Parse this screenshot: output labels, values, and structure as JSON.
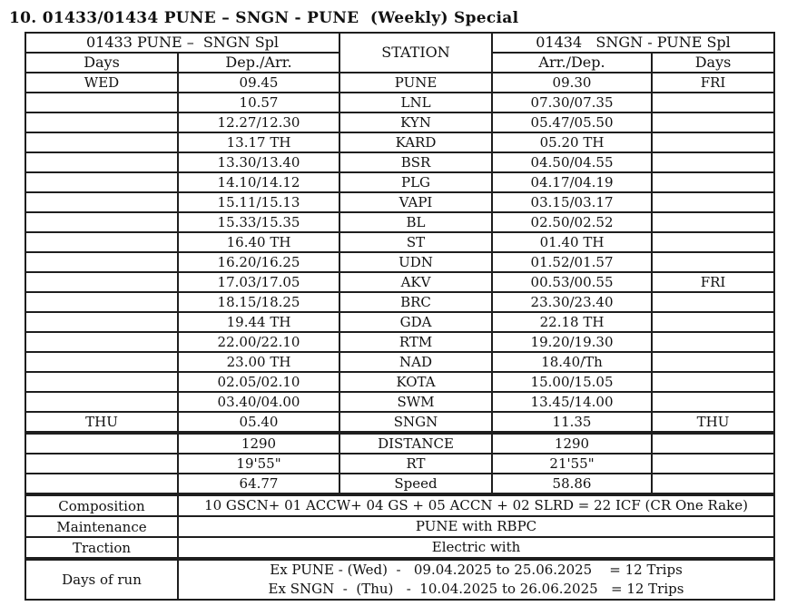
{
  "title": "10. 01433/01434 PUNE – SNGN - PUNE  (Weekly) Special",
  "table": {
    "left_group": "01433 PUNE –  SNGN Spl",
    "station_header": "STATION",
    "right_group": "01434   SNGN - PUNE Spl",
    "col_days_left": "Days",
    "col_dep": "Dep./Arr.",
    "col_arr": "Arr./Dep.",
    "col_days_right": "Days",
    "rows": [
      {
        "days_out": "WED",
        "dep_arr": "09.45",
        "station": "PUNE",
        "arr_dep": "09.30",
        "days_ret": "FRI",
        "thick_top": false
      },
      {
        "days_out": "",
        "dep_arr": "10.57",
        "station": "LNL",
        "arr_dep": "07.30/07.35",
        "days_ret": "",
        "thick_top": false
      },
      {
        "days_out": "",
        "dep_arr": "12.27/12.30",
        "station": "KYN",
        "arr_dep": "05.47/05.50",
        "days_ret": "",
        "thick_top": false
      },
      {
        "days_out": "",
        "dep_arr": "13.17 TH",
        "station": "KARD",
        "arr_dep": "05.20 TH",
        "days_ret": "",
        "thick_top": false
      },
      {
        "days_out": "",
        "dep_arr": "13.30/13.40",
        "station": "BSR",
        "arr_dep": "04.50/04.55",
        "days_ret": "",
        "thick_top": false
      },
      {
        "days_out": "",
        "dep_arr": "14.10/14.12",
        "station": "PLG",
        "arr_dep": "04.17/04.19",
        "days_ret": "",
        "thick_top": false
      },
      {
        "days_out": "",
        "dep_arr": "15.11/15.13",
        "station": "VAPI",
        "arr_dep": "03.15/03.17",
        "days_ret": "",
        "thick_top": false
      },
      {
        "days_out": "",
        "dep_arr": "15.33/15.35",
        "station": "BL",
        "arr_dep": "02.50/02.52",
        "days_ret": "",
        "thick_top": false
      },
      {
        "days_out": "",
        "dep_arr": "16.40 TH",
        "station": "ST",
        "arr_dep": "01.40 TH",
        "days_ret": "",
        "thick_top": false
      },
      {
        "days_out": "",
        "dep_arr": "16.20/16.25",
        "station": "UDN",
        "arr_dep": "01.52/01.57",
        "days_ret": "",
        "thick_top": false
      },
      {
        "days_out": "",
        "dep_arr": "17.03/17.05",
        "station": "AKV",
        "arr_dep": "00.53/00.55",
        "days_ret": "FRI",
        "thick_top": false
      },
      {
        "days_out": "",
        "dep_arr": "18.15/18.25",
        "station": "BRC",
        "arr_dep": "23.30/23.40",
        "days_ret": "",
        "thick_top": false
      },
      {
        "days_out": "",
        "dep_arr": "19.44 TH",
        "station": "GDA",
        "arr_dep": "22.18 TH",
        "days_ret": "",
        "thick_top": false
      },
      {
        "days_out": "",
        "dep_arr": "22.00/22.10",
        "station": "RTM",
        "arr_dep": "19.20/19.30",
        "days_ret": "",
        "thick_top": false
      },
      {
        "days_out": "",
        "dep_arr": "23.00 TH",
        "station": "NAD",
        "arr_dep": "18.40/Th",
        "days_ret": "",
        "thick_top": false
      },
      {
        "days_out": "",
        "dep_arr": "02.05/02.10",
        "station": "KOTA",
        "arr_dep": "15.00/15.05",
        "days_ret": "",
        "thick_top": false
      },
      {
        "days_out": "",
        "dep_arr": "03.40/04.00",
        "station": "SWM",
        "arr_dep": "13.45/14.00",
        "days_ret": "",
        "thick_top": false
      },
      {
        "days_out": "THU",
        "dep_arr": "05.40",
        "station": "SNGN",
        "arr_dep": "11.35",
        "days_ret": "THU",
        "thick_top": false
      },
      {
        "days_out": "",
        "dep_arr": "1290",
        "station": "DISTANCE",
        "arr_dep": "1290",
        "days_ret": "",
        "thick_top": true
      },
      {
        "days_out": "",
        "dep_arr": "19'55\"",
        "station": "RT",
        "arr_dep": "21'55\"",
        "days_ret": "",
        "thick_top": false
      },
      {
        "days_out": "",
        "dep_arr": "64.77",
        "station": "Speed",
        "arr_dep": "58.86",
        "days_ret": "",
        "thick_top": false
      }
    ]
  },
  "info_rows": [
    {
      "label": "Composition",
      "lines": [
        "10 GSCN+ 01 ACCW+ 04 GS + 05 ACCN + 02 SLRD = 22 ICF (CR One Rake)"
      ],
      "thick_top": true
    },
    {
      "label": "Maintenance",
      "lines": [
        "PUNE with RBPC"
      ],
      "thick_top": false
    },
    {
      "label": "Traction",
      "lines": [
        "Electric with"
      ],
      "thick_top": false
    },
    {
      "label": "Days of run",
      "lines": [
        "Ex PUNE - (Wed)  -   09.04.2025 to 25.06.2025    = 12 Trips",
        "Ex SNGN  -  (Thu)   -  10.04.2025 to 26.06.2025   = 12 Trips"
      ],
      "thick_top": true
    }
  ]
}
